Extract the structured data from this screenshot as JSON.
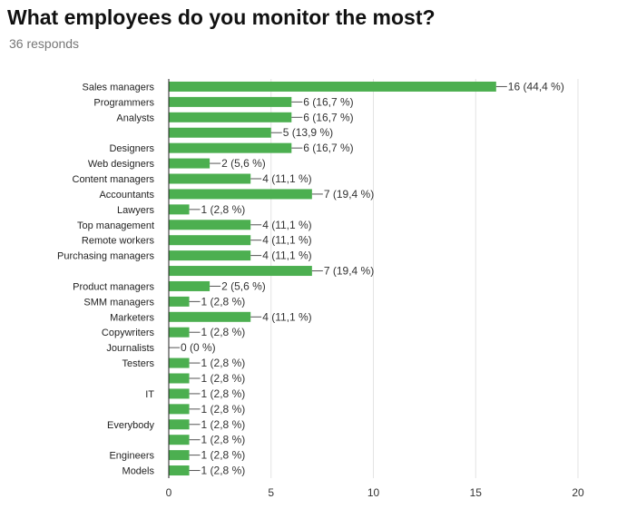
{
  "title": "What employees do you monitor the most?",
  "subtitle": "36 responds",
  "colors": {
    "bar": "#4caf50",
    "grid": "#e3e3e3",
    "axis": "#222222",
    "leader": "#555555"
  },
  "chart_data": {
    "type": "bar",
    "orientation": "horizontal",
    "xlim": [
      0,
      20
    ],
    "x_ticks": [
      0,
      5,
      10,
      15,
      20
    ],
    "grid": true,
    "categories": [
      "Sales managers",
      "Programmers",
      "Analysts",
      "",
      "Designers",
      "Web designers",
      "Content managers",
      "Accountants",
      "Lawyers",
      "Top management",
      "Remote workers",
      "Purchasing managers",
      "",
      "Product managers",
      "SMM managers",
      "Marketers",
      "Copywriters",
      "Journalists",
      "Testers",
      "",
      "IT",
      "",
      "Everybody",
      "",
      "Engineers",
      "Models"
    ],
    "values": [
      16,
      6,
      6,
      5,
      6,
      2,
      4,
      7,
      1,
      4,
      4,
      4,
      7,
      2,
      1,
      4,
      1,
      0,
      1,
      1,
      1,
      1,
      1,
      1,
      1,
      1
    ],
    "labels": [
      "16 (44,4 %)",
      "6 (16,7 %)",
      "6 (16,7 %)",
      "5 (13,9 %)",
      "6 (16,7 %)",
      "2 (5,6 %)",
      "4 (11,1 %)",
      "7 (19,4 %)",
      "1 (2,8 %)",
      "4 (11,1 %)",
      "4 (11,1 %)",
      "4 (11,1 %)",
      "7 (19,4 %)",
      "2 (5,6 %)",
      "1 (2,8 %)",
      "4 (11,1 %)",
      "1 (2,8 %)",
      "0 (0 %)",
      "1 (2,8 %)",
      "1 (2,8 %)",
      "1 (2,8 %)",
      "1 (2,8 %)",
      "1 (2,8 %)",
      "1 (2,8 %)",
      "1 (2,8 %)",
      "1 (2,8 %)"
    ]
  }
}
